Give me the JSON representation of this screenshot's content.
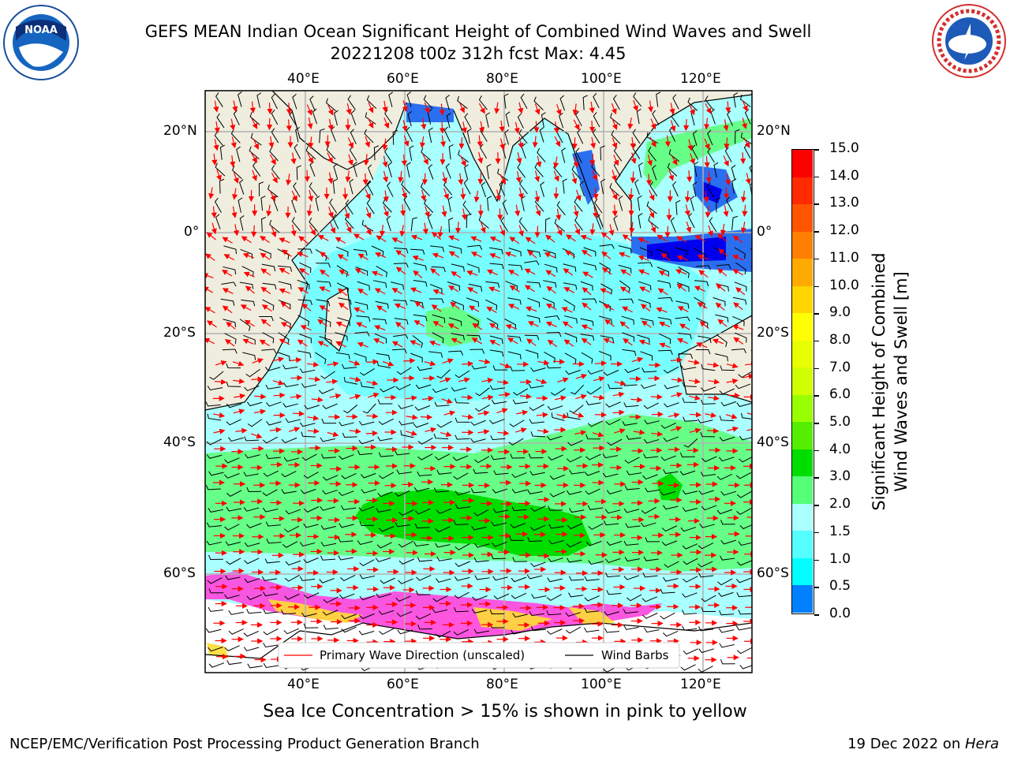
{
  "header": {
    "title_line1": "GEFS MEAN Indian Ocean Significant Height of Combined Wind Waves and Swell",
    "title_line2": "20221208 t00z 312h fcst   Max: 4.45"
  },
  "logos": {
    "left": {
      "icon": "noaa-logo-icon",
      "text": "NOAA"
    },
    "right": {
      "icon": "nws-logo-icon",
      "text": "NATIONAL WEATHER SERVICE"
    }
  },
  "map": {
    "lon_ticks_top": [
      "40°E",
      "60°E",
      "80°E",
      "100°E",
      "120°E"
    ],
    "lon_ticks_bottom": [
      "40°E",
      "60°E",
      "80°E",
      "100°E",
      "120°E"
    ],
    "lat_ticks_left": [
      "20°N",
      "0°",
      "20°S",
      "40°S",
      "60°S"
    ],
    "lat_ticks_right": [
      "20°N",
      "0°",
      "20°S",
      "40°S",
      "60°S"
    ],
    "colors": {
      "land": "#efedde",
      "ocean_low": "#aaffff",
      "ocean_mid": "#66ff88",
      "ocean_high": "#00dd00",
      "ice_pink": "#ff44dd",
      "ice_yellow": "#ffdd33"
    }
  },
  "legend": {
    "primary_wave": "Primary Wave Direction (unscaled)",
    "wind_barbs": "Wind Barbs",
    "primary_color": "#ff0000",
    "barb_color": "#000000"
  },
  "colorbar": {
    "label_line1": "Significant Height of Combined",
    "label_line2": "Wind Waves and Swell [m]",
    "ticks": [
      "15.0",
      "14.0",
      "13.0",
      "12.0",
      "11.0",
      "10.0",
      "9.0",
      "8.0",
      "7.0",
      "6.0",
      "5.0",
      "4.0",
      "3.0",
      "2.0",
      "1.5",
      "1.0",
      "0.5",
      "0.0"
    ],
    "colors_top_to_bottom": [
      "#ff0000",
      "#ff2a00",
      "#ff5500",
      "#ff8000",
      "#ffaa00",
      "#ffd500",
      "#ffff00",
      "#e8ff00",
      "#d0ff00",
      "#99ff00",
      "#55ee00",
      "#00dd00",
      "#55ff77",
      "#aaffff",
      "#55ffff",
      "#00ffff",
      "#0080ff",
      "#0000ff"
    ]
  },
  "caption": "Sea Ice Concentration > 15% is shown in pink to yellow",
  "footer": {
    "left": "NCEP/EMC/Verification Post Processing Product Generation Branch",
    "right_prefix": "19 Dec 2022 on ",
    "right_host": "Hera"
  }
}
